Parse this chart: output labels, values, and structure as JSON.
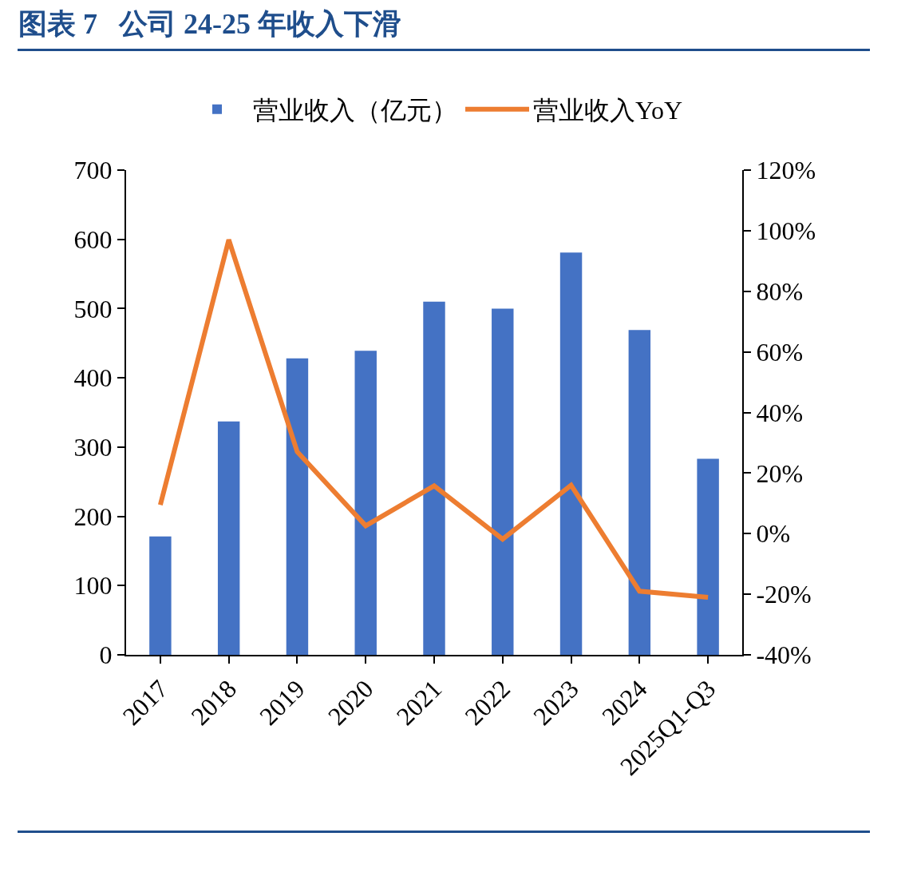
{
  "chart_data": {
    "type": "bar",
    "title": "图表 7   公司 24-25 年收入下滑",
    "categories": [
      "2017",
      "2018",
      "2019",
      "2020",
      "2021",
      "2022",
      "2023",
      "2024",
      "2025Q1-Q3"
    ],
    "series": [
      {
        "name": "营业收入（亿元）",
        "color": "#4472c4",
        "values": [
          171,
          337,
          428,
          439,
          510,
          500,
          581,
          469,
          283
        ]
      },
      {
        "name": "营业收入YoY",
        "type": "line",
        "axis": "y2",
        "color": "#ed7d31",
        "values": [
          9.5,
          97,
          27,
          2.6,
          15.8,
          -1.8,
          16,
          -19,
          -21
        ]
      }
    ],
    "ylim": [
      0,
      700
    ],
    "yticks": [
      0,
      100,
      200,
      300,
      400,
      500,
      600,
      700
    ],
    "y2lim": [
      -40,
      120
    ],
    "y2ticks": [
      {
        "value": -40,
        "label": "-40%"
      },
      {
        "value": -20,
        "label": "-20%"
      },
      {
        "value": 0,
        "label": "0%"
      },
      {
        "value": 20,
        "label": "20%"
      },
      {
        "value": 40,
        "label": "40%"
      },
      {
        "value": 60,
        "label": "60%"
      },
      {
        "value": 80,
        "label": "80%"
      },
      {
        "value": 100,
        "label": "100%"
      },
      {
        "value": 120,
        "label": "120%"
      }
    ],
    "grid": false,
    "legend": "top",
    "marker": "none",
    "line_style": "solid"
  }
}
